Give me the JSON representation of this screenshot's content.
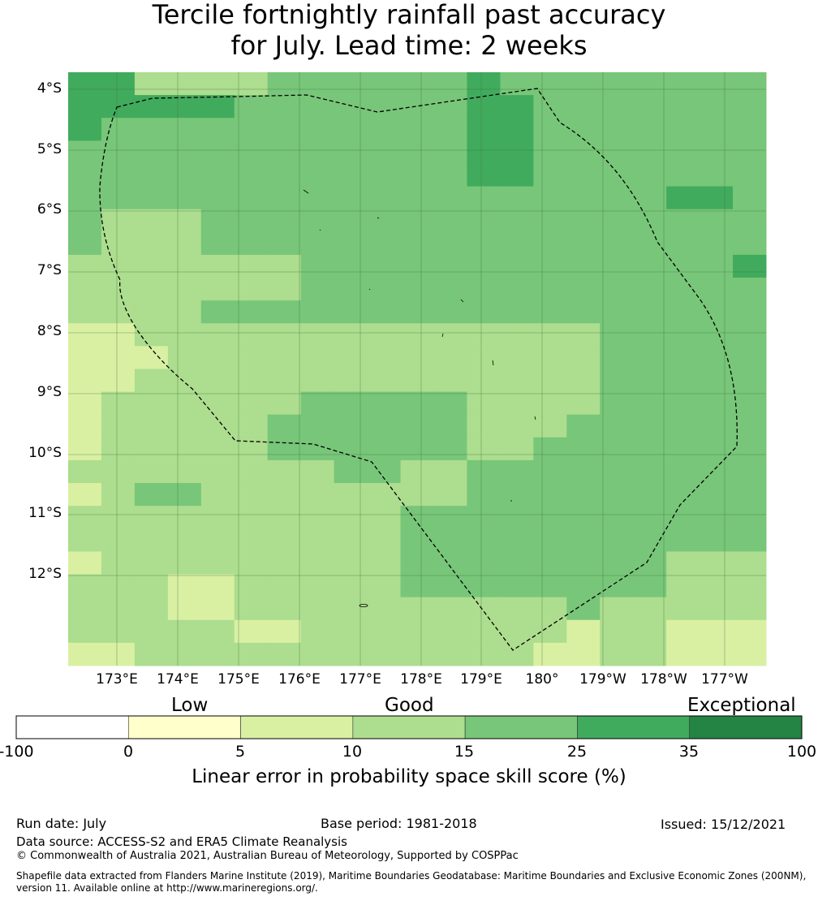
{
  "title_line1": "Tercile fortnightly rainfall past accuracy",
  "title_line2": "for July. Lead time: 2 weeks",
  "lat_labels": [
    "4°S",
    "5°S",
    "6°S",
    "7°S",
    "8°S",
    "9°S",
    "10°S",
    "11°S",
    "12°S"
  ],
  "lon_labels": [
    "173°E",
    "174°E",
    "175°E",
    "176°E",
    "177°E",
    "178°E",
    "179°E",
    "180°",
    "179°W",
    "178°W",
    "177°W"
  ],
  "colorbar": {
    "categories": [
      "Low",
      "Good",
      "Exceptional"
    ],
    "ticks": [
      "-100",
      "0",
      "5",
      "10",
      "15",
      "25",
      "35",
      "100"
    ],
    "colors": [
      "#ffffff",
      "#ffffcc",
      "#d9f0a3",
      "#addd8e",
      "#78c679",
      "#41ab5d",
      "#238443"
    ],
    "label": "Linear error in probability space skill score (%)"
  },
  "grid_values": [
    [
      30,
      30,
      12,
      12,
      12,
      12,
      20,
      20,
      20,
      20,
      20,
      20,
      30,
      20,
      20,
      20,
      20,
      20,
      20,
      20,
      20
    ],
    [
      30,
      30,
      30,
      30,
      30,
      20,
      20,
      20,
      20,
      20,
      20,
      20,
      30,
      30,
      20,
      20,
      20,
      20,
      20,
      20,
      20
    ],
    [
      30,
      20,
      20,
      20,
      20,
      20,
      20,
      20,
      20,
      20,
      20,
      20,
      30,
      30,
      20,
      20,
      20,
      20,
      20,
      20,
      20
    ],
    [
      20,
      20,
      20,
      20,
      20,
      20,
      20,
      20,
      20,
      20,
      20,
      20,
      30,
      30,
      20,
      20,
      20,
      20,
      20,
      20,
      20
    ],
    [
      20,
      20,
      20,
      20,
      20,
      20,
      20,
      20,
      20,
      20,
      20,
      20,
      30,
      30,
      20,
      20,
      20,
      20,
      20,
      20,
      20
    ],
    [
      20,
      20,
      20,
      20,
      20,
      20,
      20,
      20,
      20,
      20,
      20,
      20,
      20,
      20,
      20,
      20,
      20,
      20,
      30,
      30,
      20
    ],
    [
      20,
      12,
      12,
      12,
      20,
      20,
      20,
      20,
      20,
      20,
      20,
      20,
      20,
      20,
      20,
      20,
      20,
      20,
      20,
      20,
      20
    ],
    [
      20,
      12,
      12,
      12,
      20,
      20,
      20,
      20,
      20,
      20,
      20,
      20,
      20,
      20,
      20,
      20,
      20,
      20,
      20,
      20,
      20
    ],
    [
      12,
      12,
      12,
      12,
      12,
      12,
      12,
      20,
      20,
      20,
      20,
      20,
      20,
      20,
      20,
      20,
      20,
      20,
      20,
      20,
      30
    ],
    [
      12,
      12,
      12,
      12,
      12,
      12,
      12,
      20,
      20,
      20,
      20,
      20,
      20,
      20,
      20,
      20,
      20,
      20,
      20,
      20,
      20
    ],
    [
      12,
      12,
      12,
      12,
      20,
      20,
      20,
      20,
      20,
      20,
      20,
      20,
      20,
      20,
      20,
      20,
      20,
      20,
      20,
      20,
      20
    ],
    [
      7,
      7,
      12,
      12,
      12,
      12,
      12,
      12,
      12,
      12,
      12,
      12,
      12,
      12,
      12,
      12,
      20,
      20,
      20,
      20,
      20
    ],
    [
      7,
      7,
      7,
      12,
      12,
      12,
      12,
      12,
      12,
      12,
      12,
      12,
      12,
      12,
      12,
      12,
      20,
      20,
      20,
      20,
      20
    ],
    [
      7,
      7,
      12,
      12,
      12,
      12,
      12,
      12,
      12,
      12,
      12,
      12,
      12,
      12,
      12,
      12,
      20,
      20,
      20,
      20,
      20
    ],
    [
      7,
      12,
      12,
      12,
      12,
      12,
      12,
      20,
      20,
      20,
      20,
      20,
      12,
      12,
      12,
      12,
      20,
      20,
      20,
      20,
      20
    ],
    [
      7,
      12,
      12,
      12,
      12,
      12,
      20,
      20,
      20,
      20,
      20,
      20,
      12,
      12,
      12,
      20,
      20,
      20,
      20,
      20,
      20
    ],
    [
      7,
      12,
      12,
      12,
      12,
      12,
      20,
      20,
      20,
      20,
      20,
      20,
      12,
      12,
      20,
      20,
      20,
      20,
      20,
      20,
      20
    ],
    [
      12,
      12,
      12,
      12,
      12,
      12,
      12,
      12,
      20,
      20,
      12,
      12,
      20,
      20,
      20,
      20,
      20,
      20,
      20,
      20,
      20
    ],
    [
      7,
      12,
      20,
      20,
      12,
      12,
      12,
      12,
      12,
      12,
      12,
      12,
      20,
      20,
      20,
      20,
      20,
      20,
      20,
      20,
      20
    ],
    [
      12,
      12,
      12,
      12,
      12,
      12,
      12,
      12,
      12,
      12,
      20,
      20,
      20,
      20,
      20,
      20,
      20,
      20,
      20,
      20,
      20
    ],
    [
      12,
      12,
      12,
      12,
      12,
      12,
      12,
      12,
      12,
      12,
      20,
      20,
      20,
      20,
      20,
      20,
      20,
      20,
      20,
      20,
      20
    ],
    [
      7,
      12,
      12,
      12,
      12,
      12,
      12,
      12,
      12,
      12,
      20,
      20,
      20,
      20,
      20,
      20,
      20,
      20,
      12,
      12,
      12
    ],
    [
      12,
      12,
      12,
      7,
      7,
      12,
      12,
      12,
      12,
      12,
      20,
      20,
      20,
      20,
      20,
      20,
      20,
      20,
      12,
      12,
      12
    ],
    [
      12,
      12,
      12,
      7,
      7,
      12,
      12,
      12,
      12,
      12,
      12,
      12,
      12,
      12,
      12,
      20,
      12,
      12,
      12,
      12,
      12
    ],
    [
      12,
      12,
      12,
      12,
      12,
      7,
      7,
      12,
      12,
      12,
      12,
      12,
      12,
      12,
      12,
      7,
      12,
      12,
      7,
      7,
      7
    ],
    [
      7,
      7,
      12,
      12,
      12,
      12,
      12,
      12,
      12,
      12,
      12,
      12,
      12,
      12,
      7,
      7,
      12,
      12,
      7,
      7,
      7
    ]
  ],
  "footer": {
    "run_date": "Run date: July",
    "base_period": "Base period: 1981-2018",
    "issued": "Issued: 15/12/2021",
    "data_source": "Data source: ACCESS-S2 and ERA5 Climate Reanalysis",
    "copyright": "© Commonwealth of Australia 2021, Australian Bureau of Meteorology, Supported by COSPPac",
    "shapefile_line1": "Shapefile data extracted from Flanders Marine Institute (2019), Maritime Boundaries Geodatabase: Maritime Boundaries and Exclusive Economic Zones (200NM),",
    "shapefile_line2": "version 11. Available online at http://www.marineregions.org/."
  }
}
